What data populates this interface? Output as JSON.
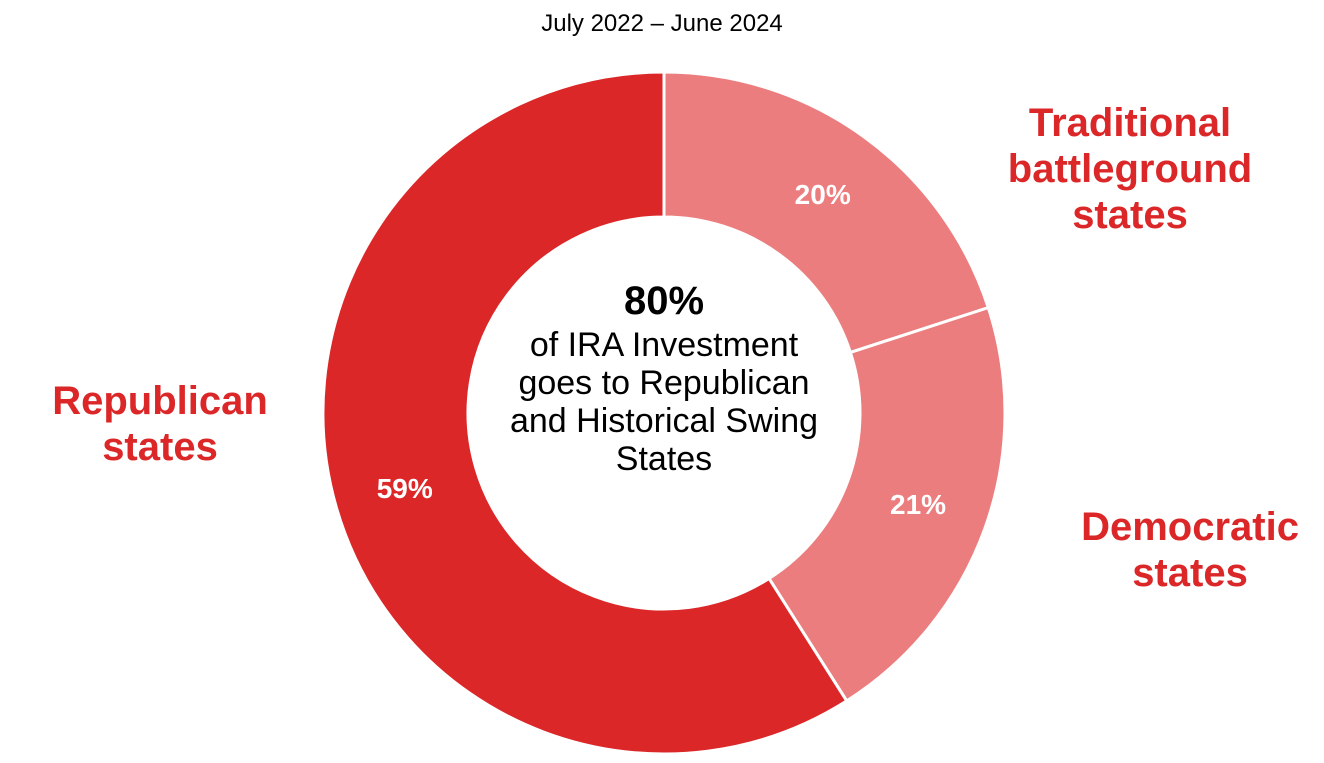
{
  "chart_data": {
    "type": "pie",
    "subtitle": "July 2022 – June 2024",
    "center": {
      "headline": "80%",
      "text": "of IRA Investment goes to Republican and Historical Swing States"
    },
    "slices": [
      {
        "label": "Traditional battleground states",
        "value": 20,
        "value_label": "20%",
        "color": "#ec7d7e"
      },
      {
        "label": "Democratic states",
        "value": 21,
        "value_label": "21%",
        "color": "#ec7d7e"
      },
      {
        "label": "Republican states",
        "value": 59,
        "value_label": "59%",
        "color": "#dc2729"
      }
    ],
    "label_color": "#dc2729",
    "start_angle_deg": 0,
    "direction": "clockwise"
  }
}
